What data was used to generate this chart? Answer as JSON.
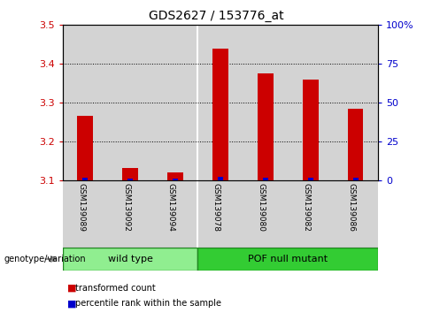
{
  "title": "GDS2627 / 153776_at",
  "samples": [
    "GSM139089",
    "GSM139092",
    "GSM139094",
    "GSM139078",
    "GSM139080",
    "GSM139082",
    "GSM139086"
  ],
  "red_values": [
    3.265,
    3.13,
    3.12,
    3.44,
    3.375,
    3.36,
    3.285
  ],
  "blue_values": [
    1.5,
    0.8,
    0.8,
    1.8,
    1.5,
    1.5,
    1.5
  ],
  "ylim_left": [
    3.1,
    3.5
  ],
  "ylim_right": [
    0,
    100
  ],
  "yticks_left": [
    3.1,
    3.2,
    3.3,
    3.4,
    3.5
  ],
  "yticks_right": [
    0,
    25,
    50,
    75,
    100
  ],
  "ytick_right_labels": [
    "0",
    "25",
    "50",
    "75",
    "100%"
  ],
  "grid_lines": [
    3.2,
    3.3,
    3.4
  ],
  "wild_type_indices": [
    0,
    1,
    2
  ],
  "pof_indices": [
    3,
    4,
    5,
    6
  ],
  "wild_type_label": "wild type",
  "pof_label": "POF null mutant",
  "wild_type_color": "#90ee90",
  "pof_color": "#33cc33",
  "legend_red_label": "transformed count",
  "legend_blue_label": "percentile rank within the sample",
  "genotype_label": "genotype/variation",
  "background_color": "#ffffff",
  "bar_bg_color": "#d3d3d3",
  "red_color": "#cc0000",
  "blue_color": "#0000cc",
  "left_axis_color": "#cc0000",
  "right_axis_color": "#0000cc",
  "bar_width": 0.35,
  "blue_bar_width": 0.12
}
